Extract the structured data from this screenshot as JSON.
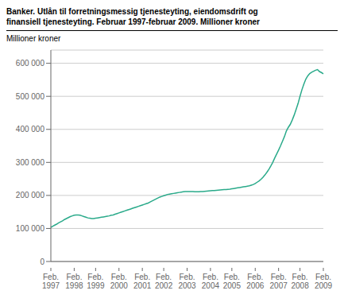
{
  "chart_data": {
    "type": "line",
    "title": "Banker. Utlån til forretningsmessig tjenesteyting, eiendomsdrift og\nfinansiell tjenesteyting. Februar 1997-februar 2009. Millioner kroner",
    "y_label": "Millioner kroner",
    "color": "#2aaa8a",
    "grid": true,
    "ylim": [
      0,
      640000
    ],
    "yticks": [
      0,
      {
        "value": 100000,
        "label": "100 000"
      },
      {
        "value": 200000,
        "label": "200 000"
      },
      {
        "value": 300000,
        "label": "300 000"
      },
      {
        "value": 400000,
        "label": "400 000"
      },
      {
        "value": 500000,
        "label": "500 000"
      },
      {
        "value": 600000,
        "label": "600 000"
      }
    ],
    "categories": [
      "Feb.\n1997",
      null,
      null,
      null,
      null,
      null,
      null,
      null,
      null,
      null,
      null,
      null,
      "Feb.\n1998",
      null,
      null,
      null,
      null,
      null,
      null,
      null,
      null,
      null,
      null,
      "Feb.\n1999",
      null,
      null,
      null,
      null,
      null,
      null,
      null,
      null,
      null,
      null,
      null,
      "Feb.\n2000",
      null,
      null,
      null,
      null,
      null,
      null,
      null,
      null,
      null,
      null,
      null,
      "Feb.\n2001",
      null,
      null,
      null,
      null,
      null,
      null,
      null,
      null,
      null,
      null,
      "Feb.\n2002",
      null,
      null,
      null,
      null,
      null,
      null,
      null,
      null,
      null,
      null,
      null,
      "Feb.\n2003",
      null,
      null,
      null,
      null,
      null,
      null,
      null,
      null,
      null,
      null,
      null,
      "Feb.\n2004",
      null,
      null,
      null,
      null,
      null,
      null,
      null,
      null,
      null,
      null,
      "Feb.\n2005",
      null,
      null,
      null,
      null,
      null,
      null,
      null,
      null,
      null,
      null,
      null,
      "Feb.\n2006",
      null,
      null,
      null,
      null,
      null,
      null,
      null,
      null,
      null,
      null,
      null,
      "Feb.\n2007",
      null,
      null,
      null,
      null,
      null,
      null,
      null,
      null,
      null,
      null,
      "Feb.\n2008",
      null,
      null,
      null,
      null,
      null,
      null,
      null,
      null,
      null,
      null,
      null,
      "Feb.\n2009"
    ],
    "values": [
      103000,
      107000,
      110000,
      113000,
      117000,
      120000,
      123000,
      127000,
      130000,
      133000,
      136000,
      138000,
      140000,
      141000,
      141000,
      140000,
      138000,
      136000,
      134000,
      132000,
      131000,
      130000,
      130000,
      131000,
      132000,
      133000,
      134000,
      135000,
      136000,
      137000,
      138000,
      140000,
      141000,
      143000,
      145000,
      147000,
      149000,
      151000,
      153000,
      155000,
      157000,
      159000,
      161000,
      163000,
      165000,
      167000,
      169000,
      171000,
      173000,
      175000,
      177000,
      180000,
      183000,
      186000,
      189000,
      192000,
      195000,
      197000,
      199000,
      201000,
      203000,
      204000,
      205000,
      206000,
      207000,
      208000,
      209000,
      210000,
      211000,
      212000,
      212000,
      212000,
      212000,
      211500,
      211000,
      211000,
      211000,
      211500,
      212000,
      212500,
      213000,
      213500,
      214000,
      214500,
      215000,
      215500,
      216000,
      216500,
      217000,
      217500,
      218000,
      218500,
      219000,
      220000,
      221000,
      222000,
      223000,
      224000,
      225000,
      226000,
      227000,
      228000,
      229000,
      231000,
      233000,
      236000,
      240000,
      244000,
      249000,
      255000,
      262000,
      270000,
      279000,
      289000,
      300000,
      313000,
      325000,
      337000,
      350000,
      364000,
      378000,
      395000,
      406000,
      415000,
      428000,
      443000,
      460000,
      478000,
      500000,
      520000,
      537000,
      552000,
      562000,
      569000,
      573000,
      576000,
      579000,
      581000,
      575000,
      572000,
      568000
    ]
  }
}
